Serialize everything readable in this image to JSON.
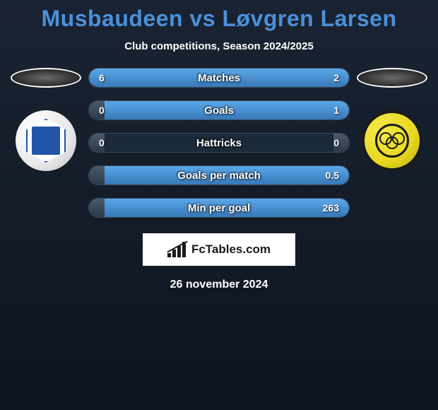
{
  "title": "Musbaudeen vs Løvgren Larsen",
  "subtitle": "Club competitions, Season 2024/2025",
  "stats": [
    {
      "label": "Matches",
      "left_val": "6",
      "right_val": "2",
      "left_pct": 75,
      "right_pct": 25
    },
    {
      "label": "Goals",
      "left_val": "0",
      "right_val": "1",
      "left_pct": 6,
      "right_pct": 94
    },
    {
      "label": "Hattricks",
      "left_val": "0",
      "right_val": "0",
      "left_pct": 6,
      "right_pct": 6
    },
    {
      "label": "Goals per match",
      "left_val": "",
      "right_val": "0.5",
      "left_pct": 6,
      "right_pct": 94
    },
    {
      "label": "Min per goal",
      "left_val": "",
      "right_val": "263",
      "left_pct": 6,
      "right_pct": 94
    }
  ],
  "colors": {
    "title": "#4a90d9",
    "bar_fill_top": "#5aa8e8",
    "bar_fill_bottom": "#3878b8",
    "bar_bg": "#1a2a3a",
    "text": "#ffffff",
    "bg_top": "#1a2332",
    "bg_bottom": "#0d1520"
  },
  "logo_text": "FcTables.com",
  "date": "26 november 2024"
}
